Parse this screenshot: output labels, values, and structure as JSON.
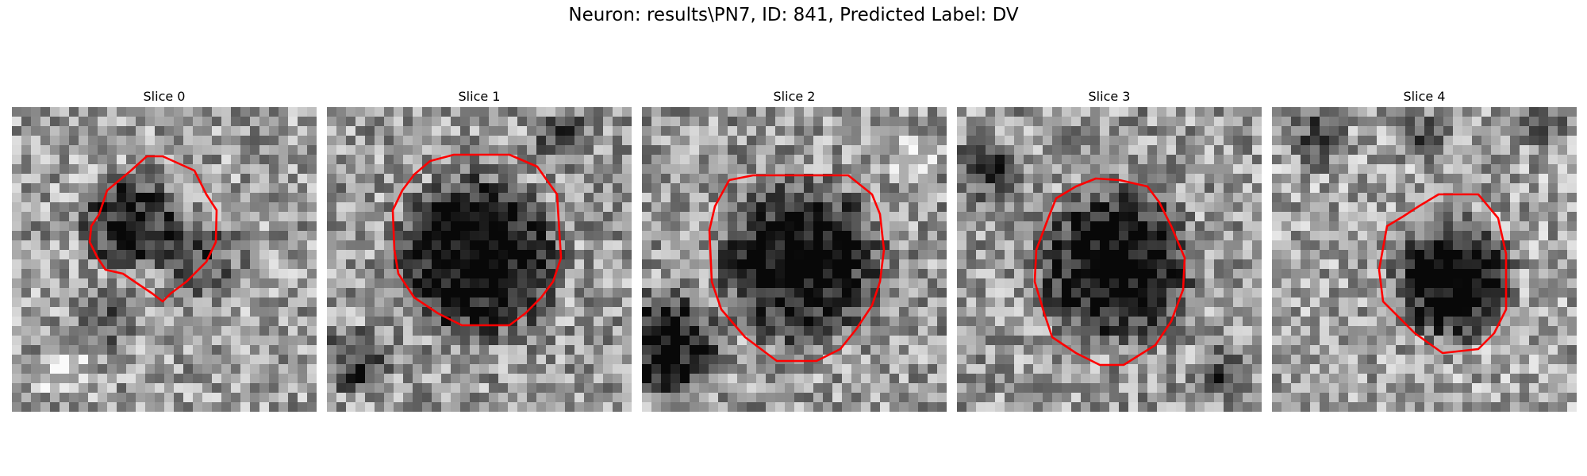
{
  "figure": {
    "title": "Neuron: results\\PN7, ID: 841, Predicted Label: DV"
  },
  "panels": [
    {
      "title": "Slice 0"
    },
    {
      "title": "Slice 1"
    },
    {
      "title": "Slice 2"
    },
    {
      "title": "Slice 3"
    },
    {
      "title": "Slice 4"
    }
  ],
  "colors": {
    "contour": "#ff0000",
    "background": "#ffffff"
  }
}
